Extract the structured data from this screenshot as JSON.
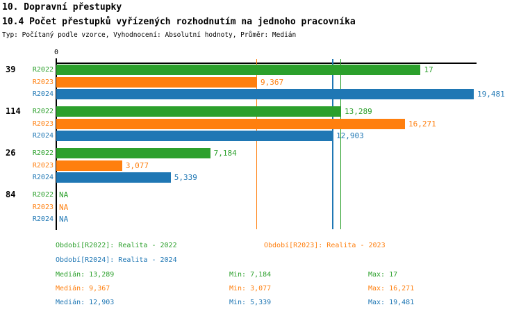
{
  "header": {
    "title1": "10. Dopravní přestupky",
    "title2": "10.4 Počet přestupků vyřízených rozhodnutím na jednoho pracovníka",
    "subtitle": "Typ: Počítaný podle vzorce, Vyhodnocení: Absolutní hodnoty, Průměr: Medián"
  },
  "colors": {
    "r2022_green": "#2CA02C",
    "r2023_orange": "#FF7F0E",
    "r2024_blue": "#1F77B4",
    "axis_black": "#000000",
    "background": "#FFFFFF"
  },
  "chart_data": {
    "type": "bar",
    "orientation": "horizontal",
    "axis_origin_label": "0",
    "xlim": [
      0,
      19.6
    ],
    "decimal_separator": "comma",
    "series_labels": [
      "R2022",
      "R2023",
      "R2024"
    ],
    "series_colors": [
      "#2CA02C",
      "#FF7F0E",
      "#1F77B4"
    ],
    "groups": [
      {
        "label": "39",
        "values": [
          17,
          9.367,
          19.481
        ],
        "display": [
          "17",
          "9,367",
          "19,481"
        ]
      },
      {
        "label": "114",
        "values": [
          13.289,
          16.271,
          12.903
        ],
        "display": [
          "13,289",
          "16,271",
          "12,903"
        ]
      },
      {
        "label": "26",
        "values": [
          7.184,
          3.077,
          5.339
        ],
        "display": [
          "7,184",
          "3,077",
          "5,339"
        ]
      },
      {
        "label": "84",
        "values": [
          null,
          null,
          null
        ],
        "display": [
          "NA",
          "NA",
          "NA"
        ]
      }
    ],
    "median_lines": [
      {
        "series": "R2022",
        "value": 13.289,
        "color": "#2CA02C"
      },
      {
        "series": "R2023",
        "value": 9.367,
        "color": "#FF7F0E"
      },
      {
        "series": "R2024",
        "value": 12.903,
        "color": "#1F77B4"
      }
    ]
  },
  "legend": {
    "items": [
      {
        "label": "Období[R2022]: Realita - 2022",
        "color": "#2CA02C"
      },
      {
        "label": "Období[R2023]: Realita - 2023",
        "color": "#FF7F0E"
      },
      {
        "label": "Období[R2024]: Realita - 2024",
        "color": "#1F77B4"
      }
    ]
  },
  "summary": {
    "rows": [
      {
        "median": "Medián: 13,289",
        "min": "Min: 7,184",
        "max": "Max: 17",
        "color": "#2CA02C"
      },
      {
        "median": "Medián: 9,367",
        "min": "Min: 3,077",
        "max": "Max: 16,271",
        "color": "#FF7F0E"
      },
      {
        "median": "Medián: 12,903",
        "min": "Min: 5,339",
        "max": "Max: 19,481",
        "color": "#1F77B4"
      }
    ]
  }
}
